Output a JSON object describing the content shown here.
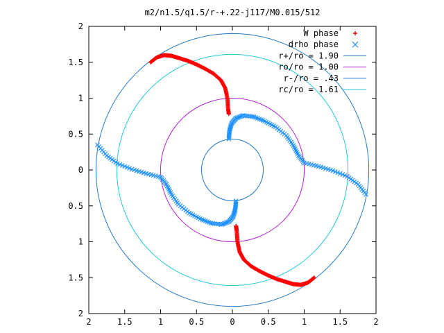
{
  "chart_data": {
    "type": "scatter",
    "title": "m2/n1.5/q1.5/r-+.22-j117/M0.015/512",
    "xlim": [
      -2,
      2
    ],
    "ylim": [
      -2,
      2
    ],
    "aspect": "equal",
    "grid": false,
    "legend_placement": "top-right",
    "x_tick_labels": [
      "2",
      "1.5",
      "1",
      "0.5",
      "0",
      "0.5",
      "1",
      "1.5",
      "2"
    ],
    "y_tick_labels": [
      "2",
      "1.5",
      "1",
      "0.5",
      "0",
      "0.5",
      "1",
      "1.5",
      "2"
    ],
    "tick_values": [
      -2,
      -1.5,
      -1,
      -0.5,
      0,
      0.5,
      1,
      1.5,
      2
    ],
    "series": [
      {
        "name": "W phase",
        "marker": "plus",
        "color": "#ff0000",
        "x": [
          -1.14,
          -1.05,
          -0.95,
          -0.85,
          -0.75,
          -0.62,
          -0.5,
          -0.38,
          -0.26,
          -0.16,
          -0.1,
          -0.07,
          -0.06,
          -0.05,
          1.14,
          1.05,
          0.95,
          0.85,
          0.75,
          0.62,
          0.5,
          0.38,
          0.26,
          0.16,
          0.1,
          0.07,
          0.06,
          0.05
        ],
        "y": [
          1.5,
          1.57,
          1.6,
          1.59,
          1.56,
          1.52,
          1.47,
          1.41,
          1.34,
          1.25,
          1.14,
          1.0,
          0.85,
          0.78,
          -1.5,
          -1.57,
          -1.6,
          -1.59,
          -1.56,
          -1.52,
          -1.47,
          -1.41,
          -1.34,
          -1.25,
          -1.14,
          -1.0,
          -0.85,
          -0.78
        ]
      },
      {
        "name": "drho phase",
        "marker": "cross",
        "color": "#1e90ff",
        "x": [
          -0.05,
          -0.04,
          -0.01,
          0.05,
          0.15,
          0.3,
          0.45,
          0.6,
          0.75,
          0.85,
          0.92,
          1.0,
          1.2,
          1.4,
          1.6,
          1.75,
          1.86,
          0.05,
          0.04,
          0.01,
          -0.05,
          -0.15,
          -0.3,
          -0.45,
          -0.6,
          -0.75,
          -0.85,
          -0.92,
          -1.0,
          -1.2,
          -1.4,
          -1.6,
          -1.75,
          -1.88
        ],
        "y": [
          0.43,
          0.55,
          0.65,
          0.72,
          0.76,
          0.74,
          0.68,
          0.6,
          0.48,
          0.34,
          0.2,
          0.1,
          0.05,
          -0.01,
          -0.09,
          -0.2,
          -0.34,
          -0.43,
          -0.55,
          -0.65,
          -0.72,
          -0.76,
          -0.74,
          -0.68,
          -0.6,
          -0.48,
          -0.34,
          -0.2,
          -0.1,
          -0.05,
          0.01,
          0.09,
          0.2,
          0.35
        ]
      },
      {
        "name": "r+/ro = 1.90",
        "type": "circle",
        "radius": 1.9,
        "color": "#1f77c8"
      },
      {
        "name": "ro/ro = 1.00",
        "type": "circle",
        "radius": 1.0,
        "color": "#b21fd6"
      },
      {
        "name": "r-/ro = .43",
        "type": "circle",
        "radius": 0.43,
        "color": "#1f77c8"
      },
      {
        "name": "rc/ro = 1.61",
        "type": "circle",
        "radius": 1.61,
        "color": "#1ec8d6"
      }
    ]
  }
}
